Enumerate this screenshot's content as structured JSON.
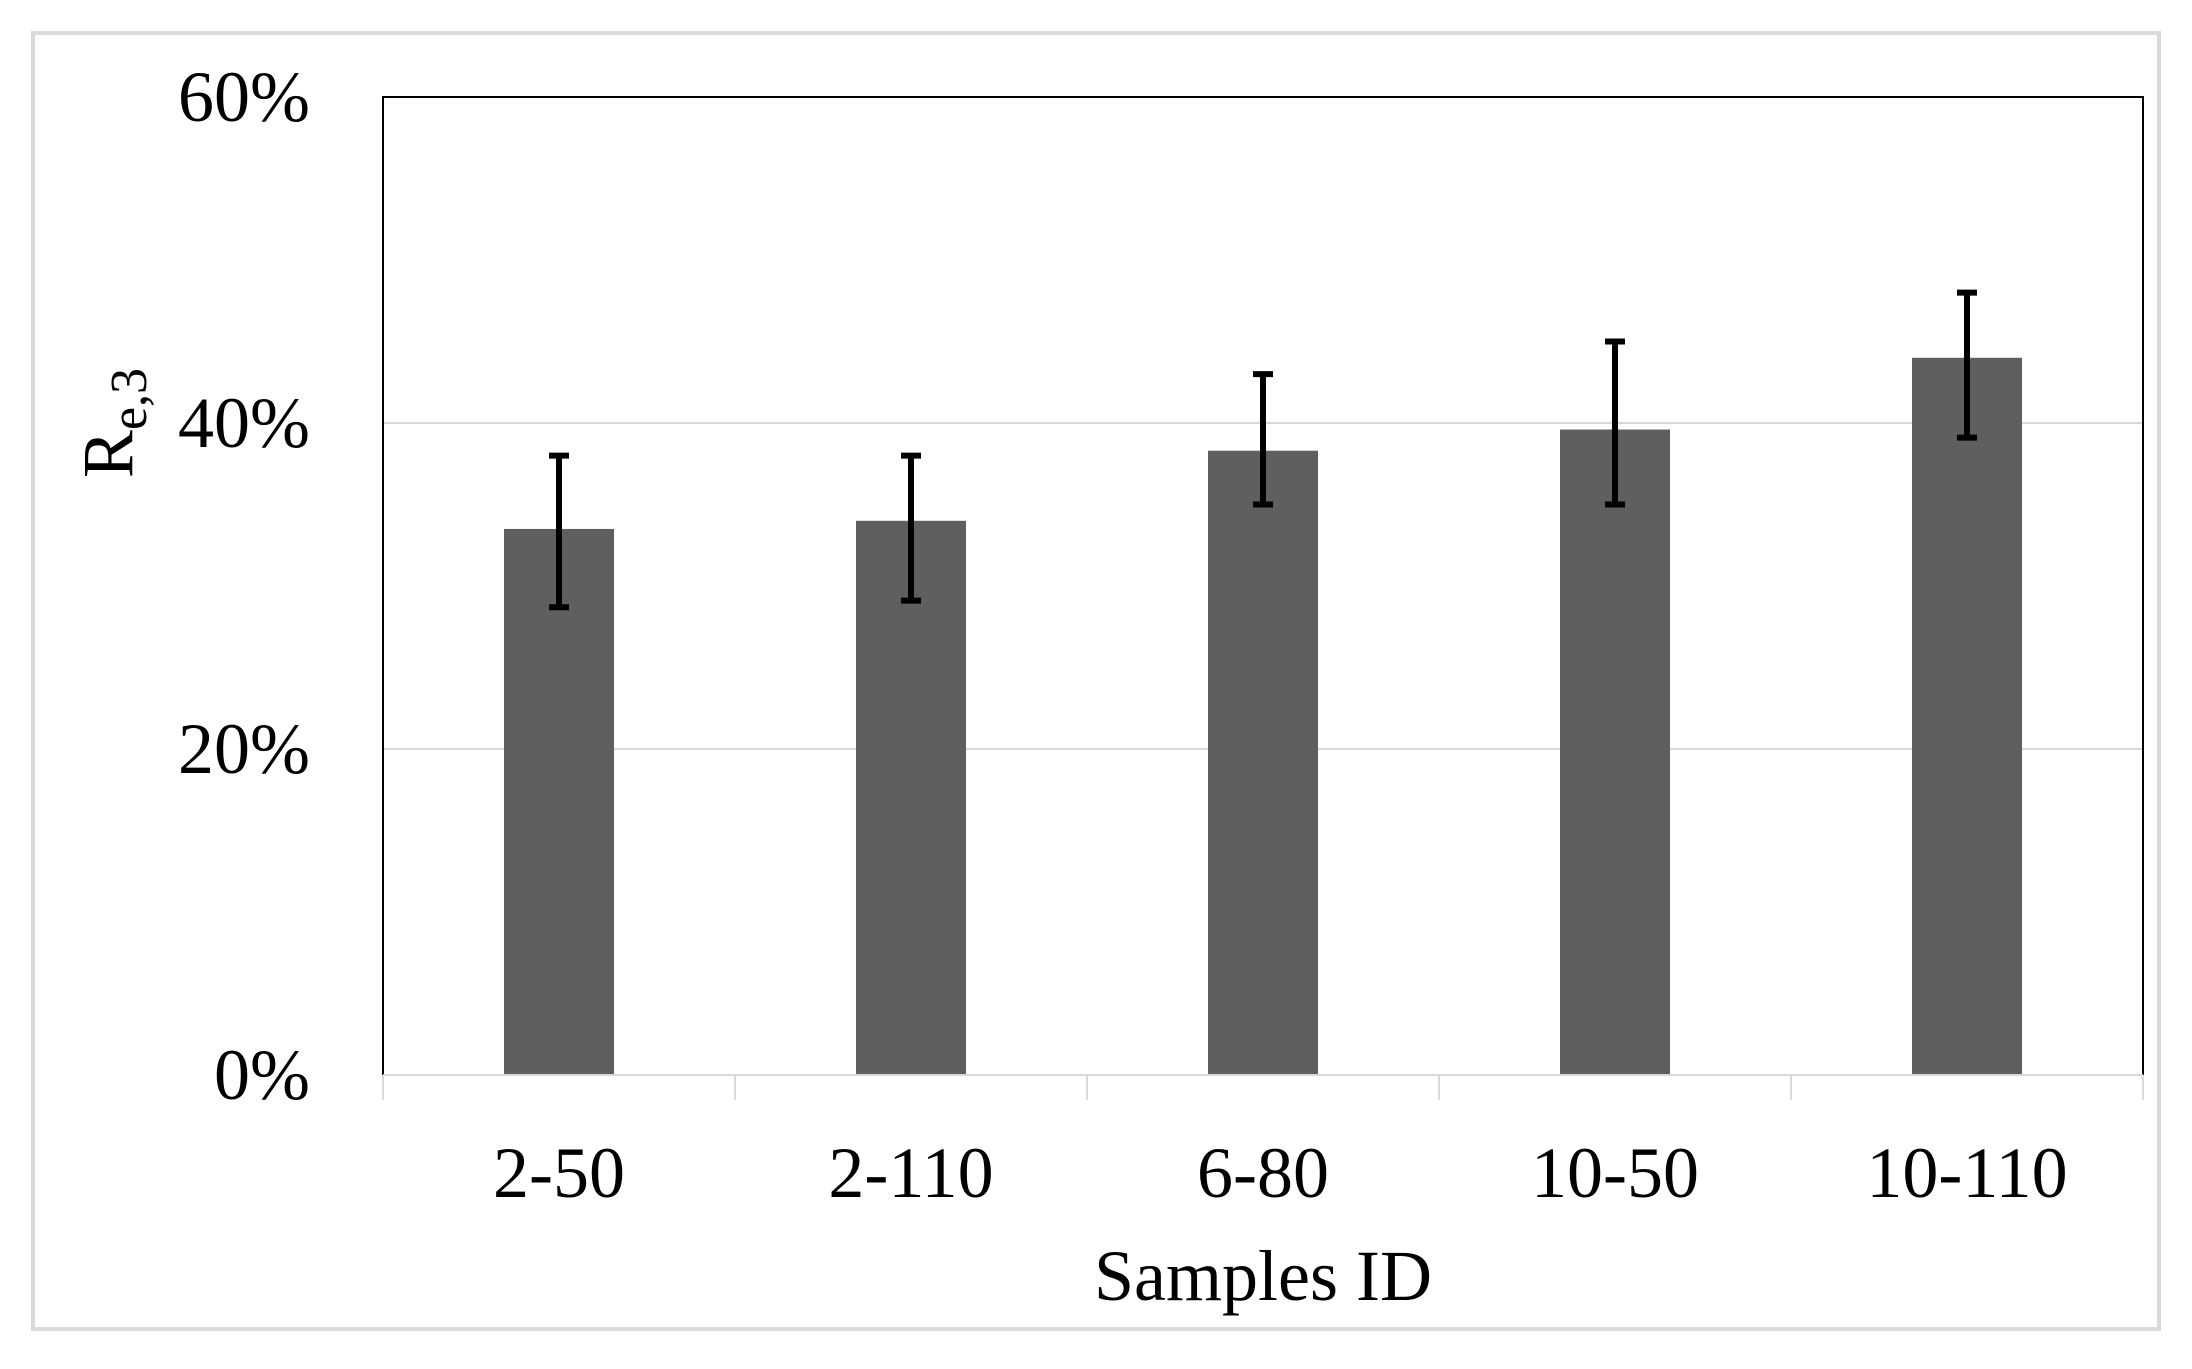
{
  "chart_data": {
    "type": "bar",
    "title": "",
    "categories": [
      "2-50",
      "2-110",
      "6-80",
      "10-50",
      "10-110"
    ],
    "values": [
      33.5,
      34.0,
      38.3,
      39.6,
      44.0
    ],
    "error_low": [
      28.7,
      29.1,
      35.0,
      35.0,
      39.1
    ],
    "error_high": [
      38.0,
      38.0,
      43.0,
      45.0,
      48.0
    ],
    "xlabel": "Samples ID",
    "ylabel": {
      "main": "R",
      "subscript": "e,3"
    },
    "ylim": [
      0,
      60
    ],
    "yticks": [
      0,
      20,
      40,
      60
    ],
    "ytick_labels": [
      "0%",
      "20%",
      "40%",
      "60%"
    ],
    "grid": true,
    "legend": "none",
    "colors": {
      "bar": "#5f5f5f",
      "error_bar": "#000000",
      "grid": "#d9d9d9",
      "axis": "#000000",
      "frame": "#d9d9d9"
    }
  }
}
